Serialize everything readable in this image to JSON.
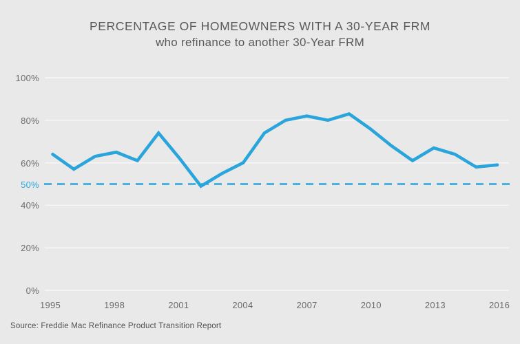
{
  "title": {
    "line1": "PERCENTAGE OF HOMEOWNERS WITH A 30-YEAR FRM",
    "line2": "who refinance to another 30-Year FRM"
  },
  "source": "Source: Freddie Mac Refinance Product Transition Report",
  "colors": {
    "line": "#2aa5dc",
    "reference_line": "#2aa5dc",
    "grid": "#f7f7f7",
    "background": "#e9e9e9",
    "tick_text": "#6a6b6d",
    "title_text": "#58595b"
  },
  "chart_data": {
    "type": "line",
    "title": "PERCENTAGE OF HOMEOWNERS WITH A 30-YEAR FRM",
    "subtitle": "who refinance to another 30-Year FRM",
    "xlabel": "",
    "ylabel": "",
    "x": [
      1995,
      1996,
      1997,
      1998,
      1999,
      2000,
      2001,
      2002,
      2003,
      2004,
      2005,
      2006,
      2007,
      2008,
      2009,
      2010,
      2011,
      2012,
      2013,
      2014,
      2015,
      2016
    ],
    "values": [
      64,
      57,
      63,
      65,
      61,
      74,
      62,
      49,
      55,
      60,
      74,
      80,
      82,
      80,
      83,
      76,
      68,
      61,
      67,
      64,
      58,
      59
    ],
    "series_name": "30-year FRM to 30-year FRM refinance share (%)",
    "x_tick_labels": [
      "1995",
      "1998",
      "2001",
      "2004",
      "2007",
      "2010",
      "2013",
      "2016"
    ],
    "y_ticks": [
      {
        "label": "100%",
        "value": 100,
        "accent": false
      },
      {
        "label": "80%",
        "value": 80,
        "accent": false
      },
      {
        "label": "60%",
        "value": 60,
        "accent": false
      },
      {
        "label": "50%",
        "value": 50,
        "accent": true
      },
      {
        "label": "40%",
        "value": 40,
        "accent": false
      },
      {
        "label": "20%",
        "value": 20,
        "accent": false
      },
      {
        "label": "0%",
        "value": 0,
        "accent": false
      }
    ],
    "gridline_values": [
      0,
      20,
      40,
      60,
      80,
      100
    ],
    "reference_line": {
      "value": 50,
      "style": "dashed",
      "label": "50%"
    },
    "ylim": [
      0,
      100
    ],
    "grid": "horizontal",
    "legend_position": "none"
  }
}
